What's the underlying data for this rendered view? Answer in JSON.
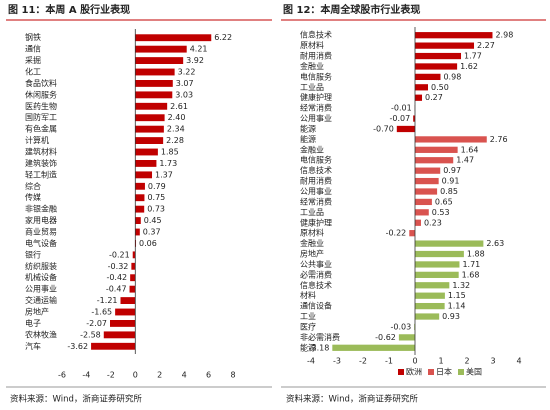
{
  "chart_data": [
    {
      "type": "bar",
      "orientation": "horizontal",
      "title": "图 11：本周 A 股行业表现",
      "source": "资料来源：Wind，浙商证券研究所",
      "categories": [
        "钢铁",
        "通信",
        "采掘",
        "化工",
        "食品饮料",
        "休闲服务",
        "医药生物",
        "国防军工",
        "有色金属",
        "计算机",
        "建筑材料",
        "建筑装饰",
        "轻工制造",
        "综合",
        "传媒",
        "非银金融",
        "家用电器",
        "商业贸易",
        "电气设备",
        "银行",
        "纺织服装",
        "机械设备",
        "公用事业",
        "交通运输",
        "房地产",
        "电子",
        "农林牧渔",
        "汽车"
      ],
      "values": [
        6.22,
        4.21,
        3.92,
        3.22,
        3.07,
        3.03,
        2.61,
        2.4,
        2.34,
        2.28,
        1.85,
        1.73,
        1.37,
        0.79,
        0.75,
        0.73,
        0.45,
        0.37,
        0.06,
        -0.21,
        -0.32,
        -0.42,
        -0.47,
        -1.21,
        -1.65,
        -2.07,
        -2.58,
        -3.62
      ],
      "value_labels": [
        "6.22",
        "4.21",
        "3.92",
        "3.22",
        "3.07",
        "3.03",
        "2.61",
        "2.40",
        "2.34",
        "2.28",
        "1.85",
        "1.73",
        "1.37",
        "0.79",
        "0.75",
        "0.73",
        "0.45",
        "0.37",
        "0.06",
        "-0.21",
        "-0.32",
        "-0.42",
        "-0.47",
        "-1.21",
        "-1.65",
        "-2.07",
        "-2.58",
        "-3.62"
      ],
      "color": "#c00000",
      "xlim": [
        -6,
        8
      ],
      "xticks": [
        -6,
        -4,
        -2,
        0,
        2,
        4,
        6,
        8
      ]
    },
    {
      "type": "bar",
      "orientation": "horizontal",
      "title": "图 12：本周全球股市行业表现",
      "source": "资料来源：Wind，浙商证券研究所",
      "categories": [
        "信息技术",
        "原材料",
        "耐用消费",
        "金融业",
        "电信服务",
        "工业品",
        "健康护理",
        "经常消费",
        "公用事业",
        "能源",
        "能源",
        "金融业",
        "电信服务",
        "信息技术",
        "耐用消费",
        "公用事业",
        "经常消费",
        "工业品",
        "健康护理",
        "原材料",
        "金融业",
        "房地产",
        "公共事业",
        "必需消费",
        "信息技术",
        "材料",
        "通信设备",
        "工业",
        "医疗",
        "非必需消费",
        "能源"
      ],
      "series": [
        {
          "name": "欧洲",
          "color": "#c00000",
          "values": [
            2.98,
            2.27,
            1.77,
            1.62,
            0.98,
            0.5,
            0.27,
            -0.01,
            -0.07,
            -0.7,
            null,
            null,
            null,
            null,
            null,
            null,
            null,
            null,
            null,
            null,
            null,
            null,
            null,
            null,
            null,
            null,
            null,
            null,
            null,
            null,
            null
          ],
          "value_labels": [
            "2.98",
            "2.27",
            "1.77",
            "1.62",
            "0.98",
            "0.50",
            "0.27",
            "-0.01",
            "-0.07",
            "-0.70",
            null,
            null,
            null,
            null,
            null,
            null,
            null,
            null,
            null,
            null,
            null,
            null,
            null,
            null,
            null,
            null,
            null,
            null,
            null,
            null,
            null
          ]
        },
        {
          "name": "日本",
          "color": "#d9534f",
          "values": [
            null,
            null,
            null,
            null,
            null,
            null,
            null,
            null,
            null,
            null,
            2.76,
            1.64,
            1.47,
            0.97,
            0.91,
            0.85,
            0.65,
            0.53,
            0.23,
            -0.22,
            null,
            null,
            null,
            null,
            null,
            null,
            null,
            null,
            null,
            null,
            null
          ],
          "value_labels": [
            null,
            null,
            null,
            null,
            null,
            null,
            null,
            null,
            null,
            null,
            "2.76",
            "1.64",
            "1.47",
            "0.97",
            "0.91",
            "0.85",
            "0.65",
            "0.53",
            "0.23",
            "-0.22",
            null,
            null,
            null,
            null,
            null,
            null,
            null,
            null,
            null,
            null,
            null
          ]
        },
        {
          "name": "美国",
          "color": "#9bbb59",
          "values": [
            null,
            null,
            null,
            null,
            null,
            null,
            null,
            null,
            null,
            null,
            null,
            null,
            null,
            null,
            null,
            null,
            null,
            null,
            null,
            null,
            2.63,
            1.88,
            1.71,
            1.68,
            1.32,
            1.15,
            1.14,
            0.93,
            -0.03,
            -0.62,
            -3.18
          ],
          "value_labels": [
            null,
            null,
            null,
            null,
            null,
            null,
            null,
            null,
            null,
            null,
            null,
            null,
            null,
            null,
            null,
            null,
            null,
            null,
            null,
            null,
            "2.63",
            "1.88",
            "1.71",
            "1.68",
            "1.32",
            "1.15",
            "1.14",
            "0.93",
            "-0.03",
            "-0.62",
            "-3.18"
          ]
        }
      ],
      "xlim": [
        -4,
        4
      ],
      "xticks": [
        -4,
        -3,
        -2,
        -1,
        0,
        1,
        2,
        3,
        4
      ],
      "legend": "bottom"
    }
  ]
}
